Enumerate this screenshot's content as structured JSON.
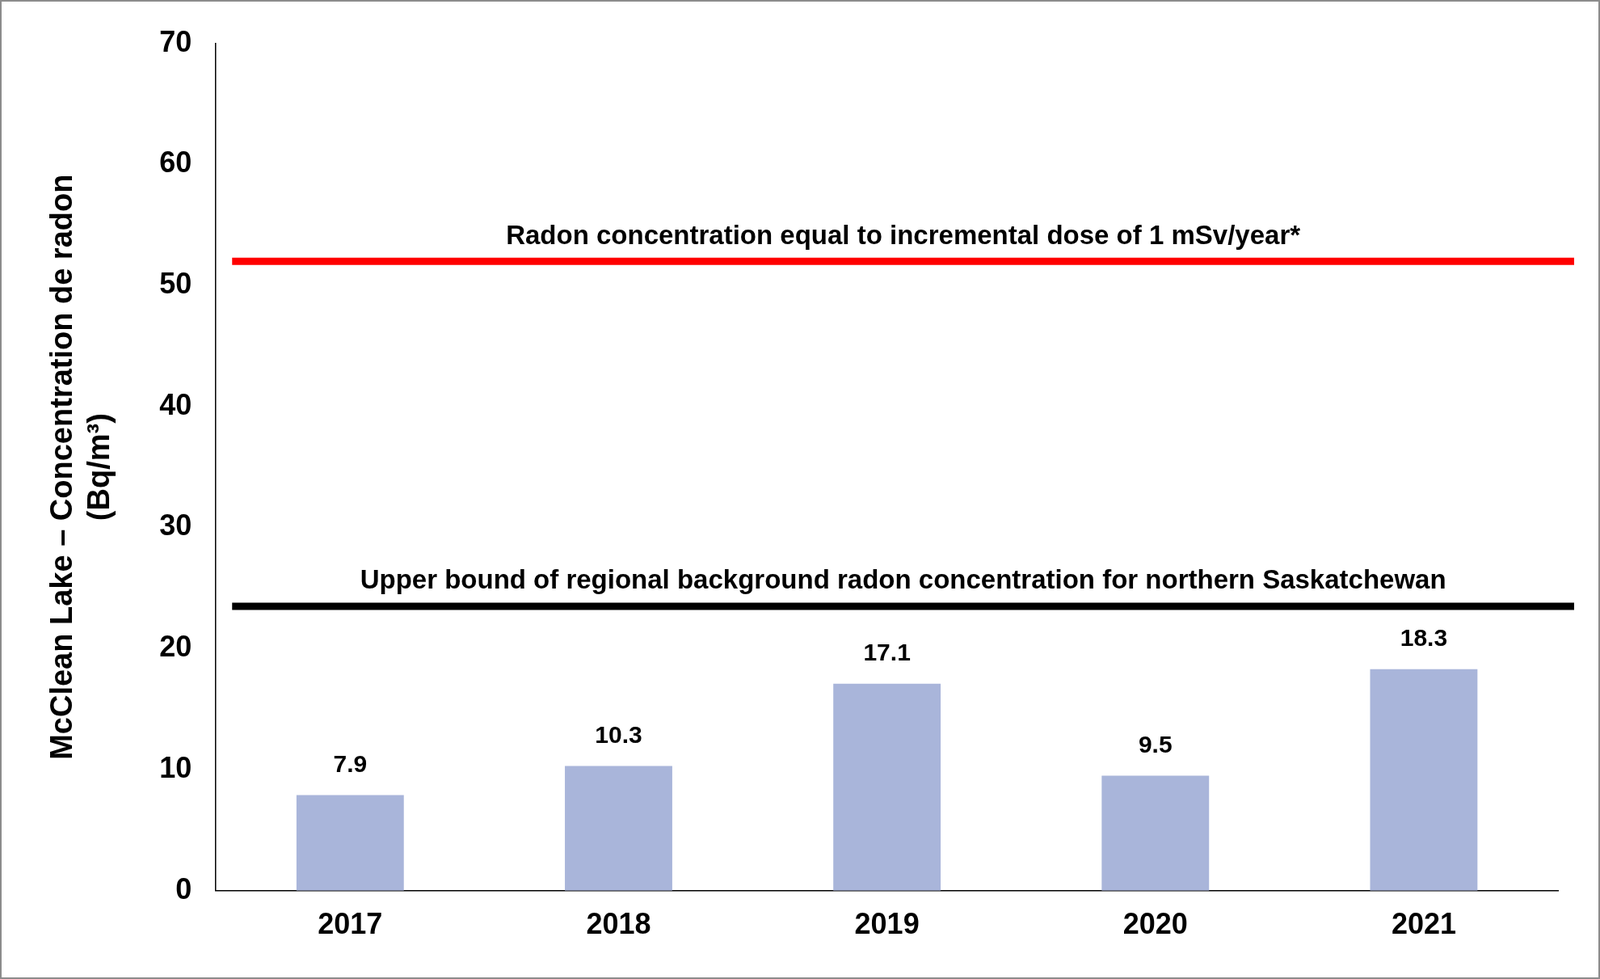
{
  "chart_data": {
    "type": "bar",
    "y_label": [
      "McClean Lake – Concentration de radon",
      "(Bq/m³)"
    ],
    "categories": [
      "2017",
      "2018",
      "2019",
      "2020",
      "2021"
    ],
    "values": [
      7.9,
      10.3,
      17.1,
      9.5,
      18.3
    ],
    "color": "#a9b5da",
    "ylim": [
      0,
      70
    ],
    "yticks": [
      0,
      10,
      20,
      30,
      40,
      50,
      60,
      70
    ],
    "grid": false,
    "data_labels": true,
    "annotations": [
      {
        "text": "Radon concentration equal to incremental dose of 1 mSv/year*",
        "y": 52,
        "color": "#ff0000"
      },
      {
        "text": "Upper bound of regional background radon concentration for northern Saskatchewan",
        "y": 23.5,
        "color": "#000000"
      }
    ]
  }
}
